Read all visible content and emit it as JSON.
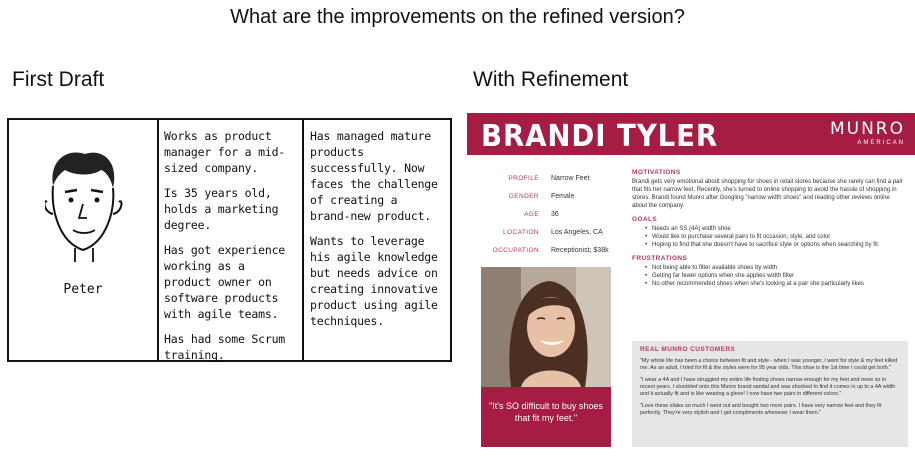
{
  "title": "What are the improvements on the refined version?",
  "left_heading": "First Draft",
  "right_heading": "With Refinement",
  "draft": {
    "name": "Peter",
    "column2": [
      "Works as product manager for a mid-sized company.",
      "Is 35 years old, holds a marketing degree.",
      "Has got experience working as a product owner on software products with agile teams.",
      "Has had some Scrum training."
    ],
    "column3": [
      "Has managed mature products successfully. Now faces the challenge of creating a brand-new product.",
      "Wants to leverage his agile knowledge but needs advice on creating innovative product using agile techniques."
    ]
  },
  "persona": {
    "name": "BRANDI TYLER",
    "brand": "MUNRO",
    "brand_sub": "AMERICAN",
    "accent_color": "#a51d43",
    "profile": [
      {
        "label": "PROFILE",
        "value": "Narrow Feet"
      },
      {
        "label": "GENDER",
        "value": "Female"
      },
      {
        "label": "AGE",
        "value": "36"
      },
      {
        "label": "LOCATION",
        "value": "Los Angeles, CA"
      },
      {
        "label": "OCCUPATION",
        "value": "Receptionist; $38k"
      }
    ],
    "quote": "\"It's SO difficult to buy shoes that fit my feet.\"",
    "motivations_heading": "MOTIVATIONS",
    "motivations_text": "Brandi gets very emotional about shopping for shoes in retail stores because she rarely can find a pair that fits her narrow feet. Recently, she's turned to online shopping to avoid the hassle of shopping in stores. Brandi found Munro after Googling \"narrow width shoes\" and reading other reviews online about the company.",
    "goals_heading": "GOALS",
    "goals": [
      "Needs an SS (4A) width shoe",
      "Would like to purchase several pairs to fit occasion, style, and color",
      "Hoping to find that she doesn't have to sacrifice style or options when searching by fit"
    ],
    "frustrations_heading": "FRUSTRATIONS",
    "frustrations": [
      "Not being able to filter available shoes by width",
      "Getting far fewer options when she applies width filter",
      "No other recommended shoes when she's looking at a pair she particularly likes"
    ],
    "reviews_heading": "REAL MUNRO CUSTOMERS",
    "reviews": [
      "\"My whole life has been a choice between fit and style - when I was younger, I went for style & my feet killed me. As an adult, I tried for fit & the styles were for 95 year olds. This shoe is the 1st time I could get both.\"",
      "\"I wear a 4A and I have struggled my entire life finding shoes narrow enough for my feet and more so in recent years. I stumbled onto this Munro brand sandal and was shocked to find it comes in up to a 4A width and it actually fit and is like wearing a glove! I now have two pairs in different colors.\"",
      "\"Love these slides so much I went out and bought two more pairs. I have very narrow feet and they fit perfectly. They're very stylish and I get compliments whenever I wear them.\""
    ]
  }
}
